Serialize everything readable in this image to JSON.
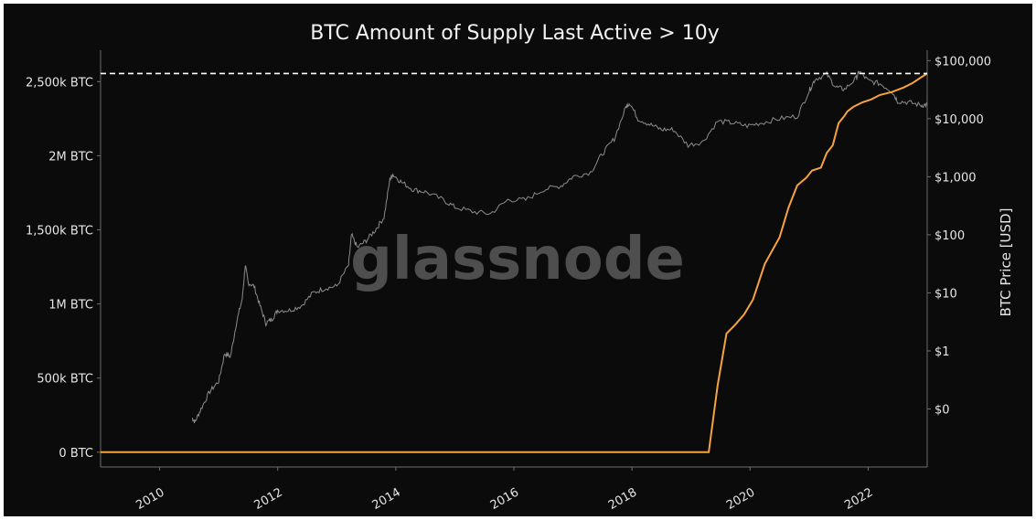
{
  "chart_data": {
    "type": "line",
    "title": "BTC Amount of Supply Last Active > 10y",
    "watermark": "glassnode",
    "ylabel_right": "BTC Price [USD]",
    "colors": {
      "background": "#0b0b0b",
      "supply_line": "#f7a33c",
      "price_line": "#8c8c8c",
      "text": "#e6e6e6",
      "axis": "#6e6e6e",
      "watermark": "#5a5a5a",
      "ath_line": "#ffffff"
    },
    "x_ticks": [
      "2010",
      "2012",
      "2014",
      "2016",
      "2018",
      "2020",
      "2022"
    ],
    "x_tick_values": [
      2010,
      2012,
      2014,
      2016,
      2018,
      2020,
      2022
    ],
    "xlim": [
      2009.0,
      2023.0
    ],
    "y_left_ticks": [
      "0 BTC",
      "500k BTC",
      "1M BTC",
      "1,500k BTC",
      "2M BTC",
      "2,500k BTC"
    ],
    "y_left_tick_values": [
      0,
      500000,
      1000000,
      1500000,
      2000000,
      2500000
    ],
    "ylim_left": [
      -100000,
      2650000
    ],
    "y_right_ticks": [
      "$0",
      "$1",
      "$10",
      "$100",
      "$1,000",
      "$10,000",
      "$100,000"
    ],
    "y_right_tick_values": [
      0.1,
      1,
      10,
      100,
      1000,
      10000,
      100000
    ],
    "ylim_right_log": [
      0.01,
      105000
    ],
    "right_scale": "log",
    "ath_reference": {
      "series": "Supply Last Active > 10y",
      "value": 2555000,
      "style": "dashed"
    },
    "series": [
      {
        "axis": "left",
        "x": [
          2009.0,
          2019.3,
          2019.45,
          2019.6,
          2019.75,
          2019.9,
          2020.05,
          2020.25,
          2020.5,
          2020.65,
          2020.8,
          2020.95,
          2021.05,
          2021.2,
          2021.3,
          2021.4,
          2021.5,
          2021.6,
          2021.65,
          2021.75,
          2021.9,
          2022.05,
          2022.2,
          2022.4,
          2022.6,
          2022.75,
          2022.9,
          2023.0
        ],
        "y": [
          0,
          0,
          450000,
          800000,
          860000,
          930000,
          1030000,
          1270000,
          1450000,
          1650000,
          1800000,
          1850000,
          1900000,
          1920000,
          2020000,
          2070000,
          2220000,
          2270000,
          2300000,
          2330000,
          2360000,
          2380000,
          2410000,
          2430000,
          2460000,
          2490000,
          2530000,
          2555000
        ]
      },
      {
        "axis": "right",
        "x": [
          2010.55,
          2010.6,
          2010.7,
          2010.85,
          2011.0,
          2011.1,
          2011.2,
          2011.3,
          2011.4,
          2011.45,
          2011.5,
          2011.6,
          2011.7,
          2011.8,
          2011.9,
          2012.0,
          2012.2,
          2012.4,
          2012.6,
          2012.8,
          2013.0,
          2013.2,
          2013.25,
          2013.35,
          2013.5,
          2013.65,
          2013.8,
          2013.9,
          2013.95,
          2014.1,
          2014.3,
          2014.5,
          2014.8,
          2015.0,
          2015.3,
          2015.6,
          2015.9,
          2016.2,
          2016.5,
          2016.8,
          2017.0,
          2017.3,
          2017.5,
          2017.7,
          2017.9,
          2017.96,
          2018.1,
          2018.3,
          2018.5,
          2018.7,
          2018.95,
          2019.2,
          2019.45,
          2019.7,
          2019.95,
          2020.2,
          2020.5,
          2020.8,
          2021.0,
          2021.1,
          2021.3,
          2021.45,
          2021.6,
          2021.8,
          2021.85,
          2022.0,
          2022.2,
          2022.4,
          2022.5,
          2022.7,
          2022.9,
          2023.0
        ],
        "y": [
          0.07,
          0.06,
          0.1,
          0.2,
          0.3,
          0.9,
          0.8,
          3,
          8,
          30,
          15,
          13,
          6,
          3,
          3.5,
          5,
          5,
          6,
          10,
          12,
          13,
          30,
          100,
          60,
          80,
          120,
          200,
          900,
          1100,
          800,
          600,
          550,
          400,
          300,
          250,
          230,
          400,
          400,
          600,
          700,
          1000,
          1200,
          2500,
          4500,
          16000,
          19000,
          10000,
          8000,
          6500,
          6500,
          3500,
          4000,
          9000,
          8500,
          7500,
          8500,
          10000,
          11000,
          30000,
          48000,
          58000,
          35000,
          32000,
          50000,
          65000,
          45000,
          40000,
          30000,
          20000,
          19000,
          17000,
          17500
        ]
      }
    ]
  }
}
